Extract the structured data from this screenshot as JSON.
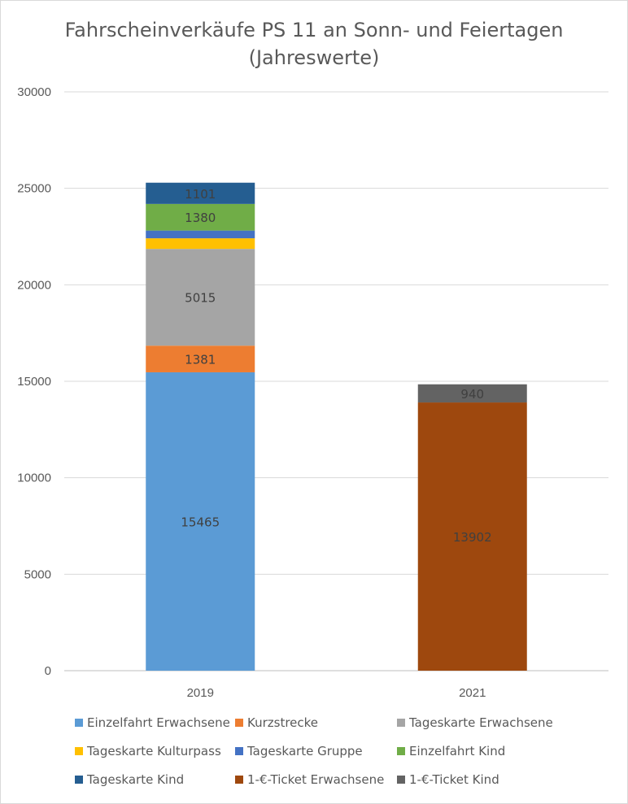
{
  "chart_data": {
    "type": "bar",
    "stacked": true,
    "title": [
      "Fahrscheinverkäufe PS 11 an Sonn- und Feiertagen",
      "(Jahreswerte)"
    ],
    "xlabel": "",
    "ylabel": "",
    "ylim": [
      0,
      30000
    ],
    "yticks": [
      0,
      5000,
      10000,
      15000,
      20000,
      25000,
      30000
    ],
    "grid": true,
    "legend_position": "bottom",
    "categories": [
      "2019",
      "2021"
    ],
    "series": [
      {
        "name": "Einzelfahrt Erwachsene",
        "color": "#5b9bd5",
        "values": [
          15465,
          0
        ],
        "labels": [
          "15465",
          ""
        ]
      },
      {
        "name": "Kurzstrecke",
        "color": "#ed7d31",
        "values": [
          1381,
          0
        ],
        "labels": [
          "1381",
          ""
        ]
      },
      {
        "name": "Tageskarte Erwachsene",
        "color": "#a5a5a5",
        "values": [
          5015,
          0
        ],
        "labels": [
          "5015",
          ""
        ]
      },
      {
        "name": "Tageskarte Kulturpass",
        "color": "#ffc000",
        "values": [
          550,
          0
        ],
        "labels": [
          "",
          ""
        ]
      },
      {
        "name": "Tageskarte Gruppe",
        "color": "#4472c4",
        "values": [
          400,
          0
        ],
        "labels": [
          "",
          ""
        ]
      },
      {
        "name": "Einzelfahrt Kind",
        "color": "#70ad47",
        "values": [
          1380,
          0
        ],
        "labels": [
          "1380",
          ""
        ]
      },
      {
        "name": "Tageskarte Kind",
        "color": "#255e91",
        "values": [
          1101,
          0
        ],
        "labels": [
          "1101",
          ""
        ]
      },
      {
        "name": "1-€-Ticket Erwachsene",
        "color": "#9e480e",
        "values": [
          0,
          13902
        ],
        "labels": [
          "",
          "13902"
        ]
      },
      {
        "name": "1-€-Ticket Kind",
        "color": "#636363",
        "values": [
          0,
          940
        ],
        "labels": [
          "",
          "940"
        ]
      }
    ]
  }
}
